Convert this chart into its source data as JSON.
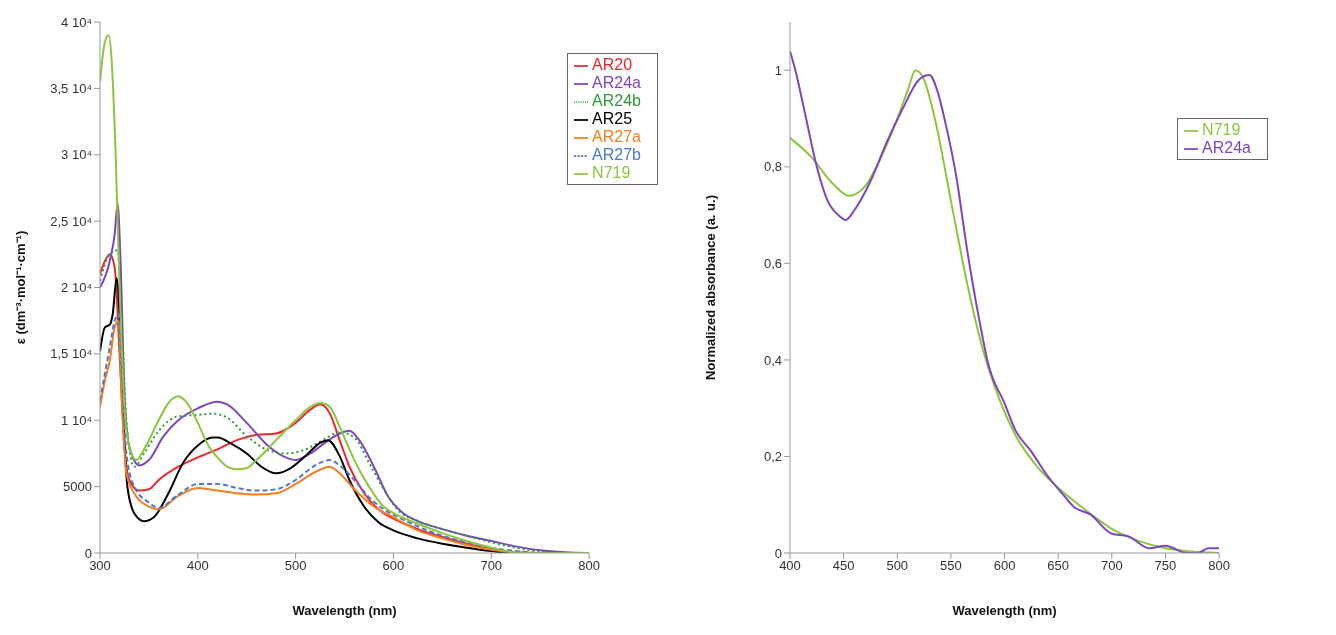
{
  "chart_data": [
    {
      "type": "line",
      "xlabel": "Wavelength (nm)",
      "ylabel": "ε (dm⁻³·mol⁻¹·cm⁻¹)",
      "xlim": [
        300,
        800
      ],
      "xticks": [
        300,
        400,
        500,
        600,
        700,
        800
      ],
      "ylim": [
        0,
        40000
      ],
      "yticks": [
        0,
        5000,
        {
          "value": 10000,
          "label": "1 10⁴"
        },
        {
          "value": 15000,
          "label": "1,5 10⁴"
        },
        {
          "value": 20000,
          "label": "2 10⁴"
        },
        {
          "value": 25000,
          "label": "2,5 10⁴"
        },
        {
          "value": 30000,
          "label": "3 10⁴"
        },
        {
          "value": 35000,
          "label": "3,5 10⁴"
        },
        {
          "value": 40000,
          "label": "4 10⁴"
        }
      ],
      "legend": "top right",
      "marker": "none",
      "series": [
        {
          "name": "AR20",
          "color": "#e8282e",
          "line_style": "solid",
          "x": [
            300,
            305,
            310,
            315,
            320,
            325,
            330,
            340,
            350,
            360,
            380,
            400,
            420,
            440,
            460,
            480,
            500,
            515,
            525,
            535,
            545,
            555,
            570,
            590,
            600,
            625,
            650,
            675,
            700,
            720,
            740,
            800
          ],
          "values": [
            21000,
            22000,
            22500,
            21500,
            15000,
            8000,
            5500,
            4700,
            4800,
            5500,
            6500,
            7200,
            7800,
            8500,
            8900,
            9000,
            9800,
            10800,
            11200,
            10500,
            8500,
            6500,
            4500,
            3000,
            2600,
            1800,
            1200,
            700,
            300,
            100,
            0,
            0
          ]
        },
        {
          "name": "AR24a",
          "color": "#7f45bf",
          "line_style": "solid",
          "x": [
            300,
            310,
            315,
            318,
            321,
            325,
            330,
            340,
            350,
            365,
            380,
            400,
            420,
            430,
            450,
            470,
            490,
            500,
            515,
            530,
            545,
            555,
            565,
            580,
            595,
            610,
            625,
            650,
            675,
            700,
            725,
            750,
            775,
            800
          ],
          "values": [
            20000,
            22000,
            24000,
            26300,
            22000,
            12000,
            8000,
            6600,
            7000,
            8800,
            10000,
            10900,
            11400,
            11200,
            9800,
            8200,
            7200,
            7000,
            7500,
            8300,
            9000,
            9200,
            8500,
            6500,
            4200,
            3000,
            2400,
            1800,
            1300,
            900,
            500,
            200,
            50,
            0
          ]
        },
        {
          "name": "AR24b",
          "color": "#2e9a3c",
          "line_style": "dotted",
          "x": [
            300,
            310,
            318,
            322,
            327,
            335,
            345,
            360,
            380,
            400,
            415,
            430,
            450,
            470,
            490,
            510,
            530,
            545,
            560,
            575,
            590,
            605,
            625,
            650,
            675,
            700,
            725,
            750,
            775,
            800
          ],
          "values": [
            20500,
            22500,
            22800,
            18000,
            10000,
            6500,
            7500,
            9200,
            10300,
            10400,
            10500,
            10200,
            8800,
            7800,
            7500,
            7800,
            8600,
            9100,
            8700,
            6800,
            4800,
            3200,
            2400,
            1800,
            1300,
            800,
            400,
            100,
            0,
            0
          ]
        },
        {
          "name": "AR25",
          "color": "#000000",
          "line_style": "solid",
          "x": [
            300,
            305,
            310,
            313,
            317,
            320,
            324,
            328,
            335,
            345,
            355,
            370,
            385,
            400,
            415,
            420,
            435,
            450,
            465,
            480,
            495,
            510,
            525,
            533,
            545,
            555,
            570,
            585,
            600,
            625,
            650,
            675,
            700,
            720,
            800
          ],
          "values": [
            15200,
            17000,
            17200,
            18000,
            20700,
            18000,
            10000,
            5000,
            3000,
            2400,
            2700,
            4500,
            6800,
            8100,
            8700,
            8700,
            8200,
            7500,
            6500,
            6000,
            6400,
            7300,
            8300,
            8500,
            7300,
            5500,
            3500,
            2300,
            1700,
            1100,
            700,
            400,
            150,
            0,
            0
          ]
        },
        {
          "name": "AR27a",
          "color": "#f57d22",
          "line_style": "solid",
          "x": [
            300,
            305,
            310,
            315,
            319,
            322,
            327,
            335,
            350,
            360,
            380,
            400,
            420,
            440,
            460,
            480,
            500,
            520,
            535,
            545,
            560,
            580,
            600,
            625,
            650,
            675,
            700,
            725,
            750,
            800
          ],
          "values": [
            11000,
            13000,
            14500,
            17000,
            17500,
            12000,
            6000,
            4500,
            3500,
            3300,
            4300,
            4900,
            4700,
            4500,
            4400,
            4500,
            5200,
            6100,
            6500,
            6000,
            4800,
            3500,
            2700,
            1700,
            1100,
            600,
            250,
            50,
            0,
            0
          ]
        },
        {
          "name": "AR27b",
          "color": "#4a78d0",
          "line_style": "dashed",
          "x": [
            300,
            305,
            310,
            315,
            319,
            322,
            327,
            335,
            350,
            360,
            380,
            400,
            420,
            440,
            460,
            480,
            500,
            520,
            535,
            545,
            560,
            575,
            590,
            605,
            625,
            650,
            675,
            700,
            725,
            750,
            800
          ],
          "values": [
            11500,
            13500,
            15500,
            17500,
            18000,
            14000,
            7500,
            5000,
            3800,
            3400,
            4400,
            5200,
            5200,
            4900,
            4700,
            4800,
            5500,
            6600,
            7000,
            6600,
            5500,
            4200,
            3300,
            2700,
            2000,
            1300,
            800,
            400,
            150,
            0,
            0
          ]
        },
        {
          "name": "N719",
          "color": "#8cc63e",
          "line_style": "solid",
          "x": [
            300,
            305,
            309,
            312,
            316,
            320,
            325,
            330,
            337,
            345,
            360,
            370,
            380,
            390,
            400,
            410,
            420,
            430,
            440,
            450,
            460,
            480,
            500,
            515,
            525,
            535,
            545,
            560,
            575,
            590,
            600,
            625,
            650,
            675,
            700,
            720,
            735,
            800
          ],
          "values": [
            35500,
            38500,
            39000,
            37000,
            30000,
            20000,
            11000,
            8000,
            7000,
            7800,
            10000,
            11300,
            11800,
            11200,
            9800,
            8200,
            7200,
            6500,
            6300,
            6400,
            7000,
            8500,
            10000,
            11000,
            11300,
            11000,
            9500,
            7000,
            5000,
            3500,
            3000,
            2200,
            1500,
            900,
            400,
            100,
            0,
            0
          ]
        }
      ]
    },
    {
      "type": "line",
      "xlabel": "Wavelength (nm)",
      "ylabel": "Normalized absorbance (a. u.)",
      "xlim": [
        400,
        800
      ],
      "xticks": [
        400,
        450,
        500,
        550,
        600,
        650,
        700,
        750,
        800
      ],
      "ylim": [
        0,
        1.1
      ],
      "yticks": [
        0,
        {
          "value": 0.2,
          "label": "0,2"
        },
        {
          "value": 0.4,
          "label": "0,4"
        },
        {
          "value": 0.6,
          "label": "0,6"
        },
        {
          "value": 0.8,
          "label": "0,8"
        },
        1
      ],
      "legend": "top right",
      "marker": "none",
      "series": [
        {
          "name": "N719",
          "color": "#8cc63e",
          "line_style": "solid",
          "x": [
            400,
            420,
            440,
            455,
            470,
            485,
            500,
            510,
            517,
            525,
            535,
            550,
            565,
            580,
            595,
            610,
            630,
            650,
            675,
            700,
            725,
            750,
            775,
            800
          ],
          "values": [
            0.86,
            0.82,
            0.765,
            0.74,
            0.76,
            0.82,
            0.9,
            0.96,
            1.0,
            0.98,
            0.9,
            0.73,
            0.56,
            0.42,
            0.32,
            0.245,
            0.18,
            0.135,
            0.09,
            0.05,
            0.025,
            0.01,
            0.003,
            0
          ]
        },
        {
          "name": "AR24a",
          "color": "#7f45bf",
          "line_style": "solid",
          "x": [
            400,
            405,
            415,
            425,
            435,
            445,
            452,
            460,
            475,
            490,
            505,
            520,
            530,
            537,
            545,
            555,
            565,
            575,
            585,
            600,
            610,
            625,
            640,
            655,
            665,
            680,
            700,
            715,
            735,
            750,
            770,
            780,
            790,
            800
          ],
          "values": [
            1.04,
            1.0,
            0.9,
            0.8,
            0.73,
            0.7,
            0.69,
            0.71,
            0.77,
            0.85,
            0.92,
            0.98,
            0.99,
            0.96,
            0.89,
            0.78,
            0.63,
            0.5,
            0.39,
            0.31,
            0.255,
            0.21,
            0.16,
            0.12,
            0.095,
            0.08,
            0.04,
            0.035,
            0.01,
            0.015,
            0,
            0,
            0.01,
            0.01
          ]
        }
      ]
    }
  ]
}
